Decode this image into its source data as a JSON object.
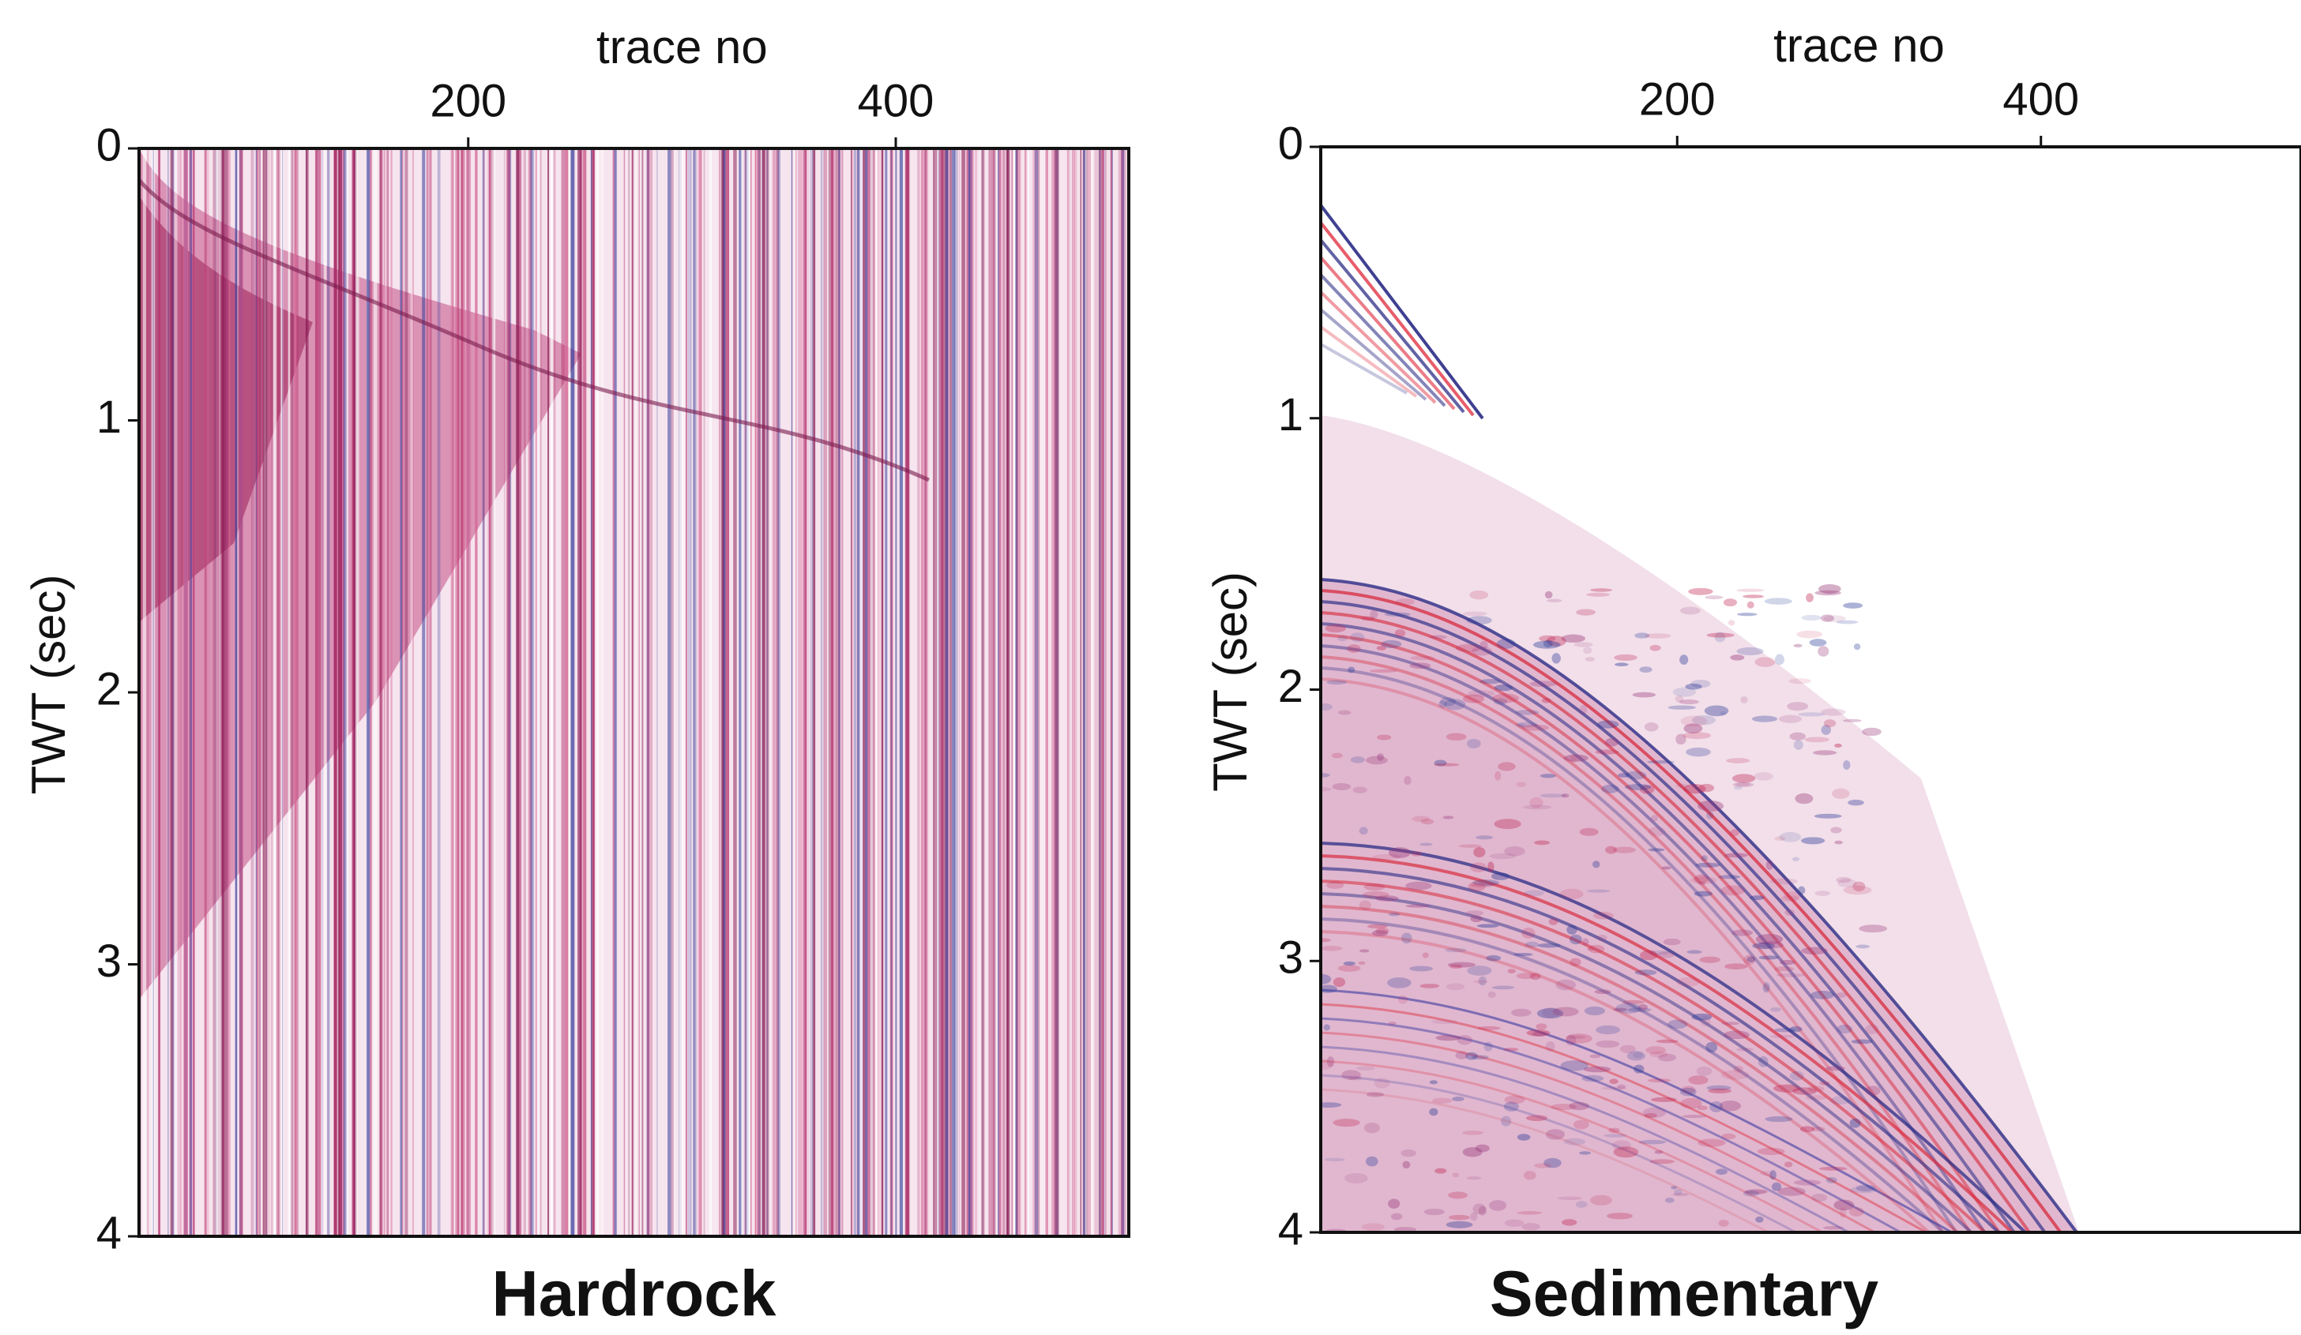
{
  "chart_data": [
    {
      "type": "image",
      "title": "Hardrock",
      "xlabel": "trace no",
      "ylabel": "TWT (sec)",
      "xlim": [
        46,
        509
      ],
      "xticks": [
        200,
        400
      ],
      "ylim": [
        0,
        4
      ],
      "yticks": [
        0,
        1,
        2,
        3,
        4
      ]
    },
    {
      "type": "image",
      "title": "Sedimentary",
      "xlabel": "trace no",
      "ylabel": "TWT (sec)",
      "xlim": [
        4,
        543
      ],
      "xticks": [
        200,
        400
      ],
      "ylim": [
        0,
        4
      ],
      "yticks": [
        0,
        1,
        2,
        3,
        4
      ]
    }
  ]
}
